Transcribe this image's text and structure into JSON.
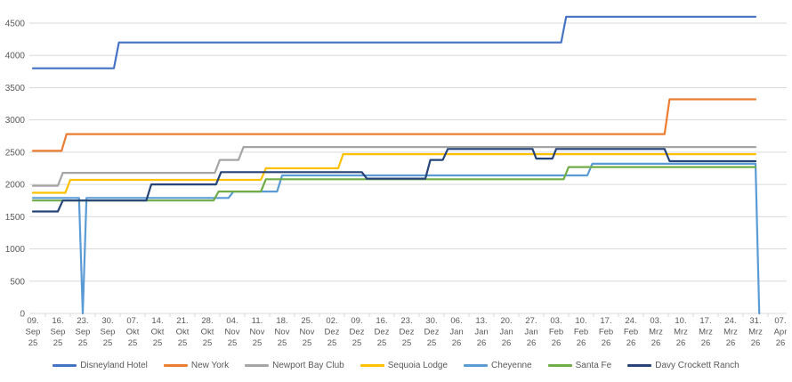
{
  "chart_data": {
    "type": "line",
    "title": "",
    "xlabel": "",
    "ylabel": "",
    "grid": true,
    "legend_position": "bottom",
    "y_axis": {
      "min": 0,
      "max": 4700,
      "tick_step": 500,
      "ticks": [
        0,
        500,
        1000,
        1500,
        2000,
        2500,
        3000,
        3500,
        4000,
        4500
      ]
    },
    "x_axis": {
      "categories": [
        {
          "day": "09.",
          "month": "Sep",
          "year": "25"
        },
        {
          "day": "16.",
          "month": "Sep",
          "year": "25"
        },
        {
          "day": "23.",
          "month": "Sep",
          "year": "25"
        },
        {
          "day": "30.",
          "month": "Sep",
          "year": "25"
        },
        {
          "day": "07.",
          "month": "Okt",
          "year": "25"
        },
        {
          "day": "14.",
          "month": "Okt",
          "year": "25"
        },
        {
          "day": "21.",
          "month": "Okt",
          "year": "25"
        },
        {
          "day": "28.",
          "month": "Okt",
          "year": "25"
        },
        {
          "day": "04.",
          "month": "Nov",
          "year": "25"
        },
        {
          "day": "11.",
          "month": "Nov",
          "year": "25"
        },
        {
          "day": "18.",
          "month": "Nov",
          "year": "25"
        },
        {
          "day": "25.",
          "month": "Nov",
          "year": "25"
        },
        {
          "day": "02.",
          "month": "Dez",
          "year": "25"
        },
        {
          "day": "09.",
          "month": "Dez",
          "year": "25"
        },
        {
          "day": "16.",
          "month": "Dez",
          "year": "25"
        },
        {
          "day": "23.",
          "month": "Dez",
          "year": "25"
        },
        {
          "day": "30.",
          "month": "Dez",
          "year": "25"
        },
        {
          "day": "06.",
          "month": "Jan",
          "year": "26"
        },
        {
          "day": "13.",
          "month": "Jan",
          "year": "26"
        },
        {
          "day": "20.",
          "month": "Jan",
          "year": "26"
        },
        {
          "day": "27.",
          "month": "Jan",
          "year": "26"
        },
        {
          "day": "03.",
          "month": "Feb",
          "year": "26"
        },
        {
          "day": "10.",
          "month": "Feb",
          "year": "26"
        },
        {
          "day": "17.",
          "month": "Feb",
          "year": "26"
        },
        {
          "day": "24.",
          "month": "Feb",
          "year": "26"
        },
        {
          "day": "03.",
          "month": "Mrz",
          "year": "26"
        },
        {
          "day": "10.",
          "month": "Mrz",
          "year": "26"
        },
        {
          "day": "17.",
          "month": "Mrz",
          "year": "26"
        },
        {
          "day": "24.",
          "month": "Mrz",
          "year": "26"
        },
        {
          "day": "31.",
          "month": "Mrz",
          "year": "26"
        },
        {
          "day": "07.",
          "month": "Apr",
          "year": "26"
        }
      ]
    },
    "series": [
      {
        "name": "Disneyland Hotel",
        "color": "#4472C4",
        "points": [
          [
            0,
            3800
          ],
          [
            3.25,
            3800
          ],
          [
            3.45,
            4200
          ],
          [
            21.2,
            4200
          ],
          [
            21.4,
            4600
          ],
          [
            29,
            4600
          ]
        ]
      },
      {
        "name": "New York",
        "color": "#ED7D31",
        "points": [
          [
            0,
            2520
          ],
          [
            1.15,
            2520
          ],
          [
            1.35,
            2780
          ],
          [
            25.35,
            2780
          ],
          [
            25.55,
            3320
          ],
          [
            29,
            3320
          ]
        ]
      },
      {
        "name": "Newport Bay Club",
        "color": "#A5A5A5",
        "points": [
          [
            0,
            1980
          ],
          [
            1.0,
            1980
          ],
          [
            1.2,
            2180
          ],
          [
            7.3,
            2180
          ],
          [
            7.5,
            2380
          ],
          [
            8.25,
            2380
          ],
          [
            8.45,
            2580
          ],
          [
            29,
            2580
          ]
        ]
      },
      {
        "name": "Sequoia Lodge",
        "color": "#FFC000",
        "points": [
          [
            0,
            1870
          ],
          [
            1.3,
            1870
          ],
          [
            1.5,
            2070
          ],
          [
            9.15,
            2070
          ],
          [
            9.35,
            2250
          ],
          [
            12.25,
            2250
          ],
          [
            12.45,
            2470
          ],
          [
            29,
            2470
          ]
        ]
      },
      {
        "name": "Cheyenne",
        "color": "#5B9BD5",
        "points": [
          [
            0,
            1790
          ],
          [
            1.85,
            1790
          ],
          [
            2.0,
            0
          ],
          [
            2.15,
            1790
          ],
          [
            7.85,
            1790
          ],
          [
            8.05,
            1890
          ],
          [
            9.8,
            1890
          ],
          [
            10.0,
            2140
          ],
          [
            22.25,
            2140
          ],
          [
            22.45,
            2320
          ],
          [
            29.0,
            2320
          ],
          [
            29.15,
            0
          ]
        ]
      },
      {
        "name": "Santa Fe",
        "color": "#70AD47",
        "points": [
          [
            0,
            1750
          ],
          [
            7.25,
            1750
          ],
          [
            7.45,
            1890
          ],
          [
            9.15,
            1890
          ],
          [
            9.35,
            2080
          ],
          [
            21.3,
            2080
          ],
          [
            21.5,
            2270
          ],
          [
            29,
            2270
          ]
        ]
      },
      {
        "name": "Davy Crockett Ranch",
        "color": "#264478",
        "points": [
          [
            0,
            1580
          ],
          [
            1.0,
            1580
          ],
          [
            1.2,
            1750
          ],
          [
            4.55,
            1750
          ],
          [
            4.75,
            2000
          ],
          [
            7.35,
            2000
          ],
          [
            7.55,
            2190
          ],
          [
            13.2,
            2190
          ],
          [
            13.4,
            2090
          ],
          [
            15.75,
            2090
          ],
          [
            15.95,
            2380
          ],
          [
            16.45,
            2380
          ],
          [
            16.65,
            2550
          ],
          [
            20.05,
            2550
          ],
          [
            20.2,
            2400
          ],
          [
            20.85,
            2400
          ],
          [
            21.0,
            2550
          ],
          [
            25.35,
            2550
          ],
          [
            25.55,
            2360
          ],
          [
            29,
            2360
          ]
        ]
      }
    ],
    "colors": {
      "gridline": "#D9D9D9",
      "axis": "#D0D0D0",
      "tick_text": "#595959"
    }
  }
}
